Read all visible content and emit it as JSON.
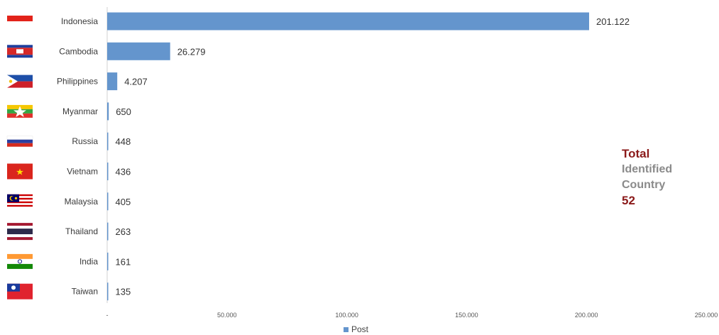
{
  "chart_data": {
    "type": "bar",
    "orientation": "horizontal",
    "categories": [
      "Indonesia",
      "Cambodia",
      "Philippines",
      "Myanmar",
      "Russia",
      "Vietnam",
      "Malaysia",
      "Thailand",
      "India",
      "Taiwan"
    ],
    "series": [
      {
        "name": "Post",
        "values": [
          201122,
          26279,
          4207,
          650,
          448,
          436,
          405,
          263,
          161,
          135
        ],
        "labels": [
          "201.122",
          "26.279",
          "4.207",
          "650",
          "448",
          "436",
          "405",
          "263",
          "161",
          "135"
        ]
      }
    ],
    "xlim": [
      0,
      250000
    ],
    "x_ticks": [
      0,
      50000,
      100000,
      150000,
      200000,
      250000
    ],
    "x_tick_labels": [
      "-",
      "50.000",
      "100.000",
      "150.000",
      "200.000",
      "250.000"
    ],
    "grid": false,
    "legend_position": "bottom",
    "bar_color": "#6495cd",
    "flag_icons": [
      "indonesia-flag-icon",
      "cambodia-flag-icon",
      "philippines-flag-icon",
      "myanmar-flag-icon",
      "russia-flag-icon",
      "vietnam-flag-icon",
      "malaysia-flag-icon",
      "thailand-flag-icon",
      "india-flag-icon",
      "taiwan-flag-icon"
    ]
  },
  "summary": {
    "title": "Total",
    "subtitle_line1": "Identified",
    "subtitle_line2": "Country",
    "count": "52",
    "title_color": "#8b1a1a",
    "subtitle_color": "#8a8a8a"
  }
}
